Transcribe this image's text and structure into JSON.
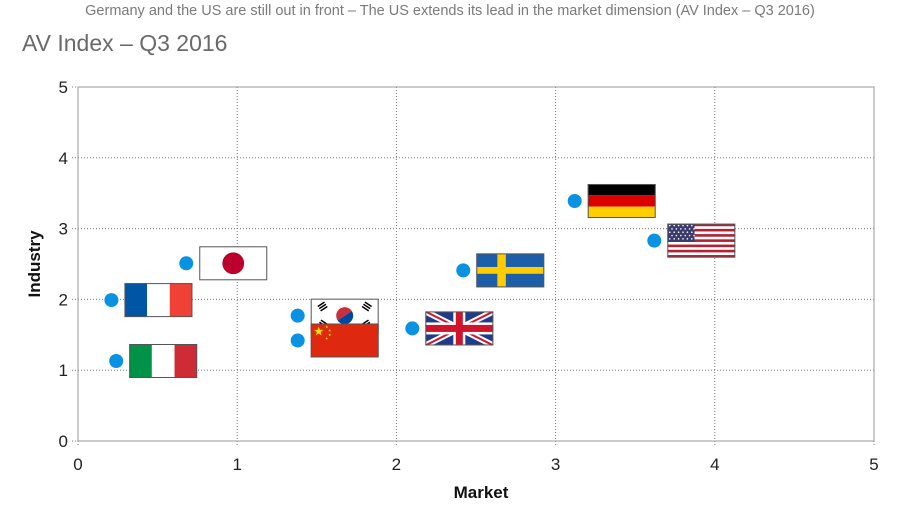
{
  "subtitle": "Germany and the US are still out in front – The US extends its lead in the market dimension (AV Index – Q3 2016)",
  "title": "AV Index – Q3 2016",
  "chart_data": {
    "type": "scatter",
    "xlabel": "Market",
    "ylabel": "Industry",
    "xlim": [
      0,
      5
    ],
    "ylim": [
      0,
      5
    ],
    "xticks": [
      "0",
      "1",
      "2",
      "3",
      "4",
      "5"
    ],
    "yticks": [
      "0",
      "1",
      "2",
      "3",
      "4",
      "5"
    ],
    "grid": true,
    "point_color": "#0a92e2",
    "points": [
      {
        "flag": "germany-flag",
        "x": 3.12,
        "y": 3.39
      },
      {
        "flag": "usa-flag",
        "x": 3.62,
        "y": 2.83
      },
      {
        "flag": "sweden-flag",
        "x": 2.42,
        "y": 2.41
      },
      {
        "flag": "uk-flag",
        "x": 2.1,
        "y": 1.59
      },
      {
        "flag": "south-korea-flag",
        "x": 1.38,
        "y": 1.77
      },
      {
        "flag": "china-flag",
        "x": 1.38,
        "y": 1.42
      },
      {
        "flag": "japan-flag",
        "x": 0.68,
        "y": 2.51
      },
      {
        "flag": "france-flag",
        "x": 0.21,
        "y": 1.99
      },
      {
        "flag": "italy-flag",
        "x": 0.24,
        "y": 1.13
      }
    ]
  }
}
